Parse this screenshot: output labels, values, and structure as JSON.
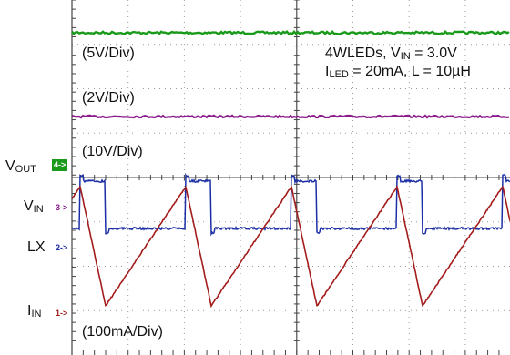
{
  "chart_data": {
    "type": "line",
    "title": "",
    "grid": true,
    "annotation": {
      "line1": "4WLEDs, V",
      "line1_sub": "IN",
      "line1_rest": " = 3.0V",
      "line2": "I",
      "line2_sub": "LED",
      "line2_rest": " = 20mA, L = 10µH"
    },
    "scale_labels": [
      "(5V/Div)",
      "(2V/Div)",
      "(10V/Div)",
      "(100mA/Div)"
    ],
    "channels": [
      {
        "main": "V",
        "sub": "OUT",
        "marker": "4->",
        "color": "#1a9a1a",
        "level_div": 6.0,
        "waveform": "dc"
      },
      {
        "main": "V",
        "sub": "IN",
        "marker": "3->",
        "color": "#8b1a8b",
        "level_div": 3.5,
        "waveform": "dc"
      },
      {
        "main": "LX",
        "sub": "",
        "marker": "2->",
        "color": "#1c2fa6",
        "level_div": 0.8,
        "high_div": 2.6,
        "waveform": "switching"
      },
      {
        "main": "I",
        "sub": "IN",
        "marker": "1->",
        "color": "#a31c1c",
        "low_div": -1.8,
        "high_div": 0.9,
        "waveform": "triangle"
      }
    ],
    "switching_periods_div": 2.4,
    "high_fraction": 0.38
  },
  "colors": {
    "grid": "#9a9a9a",
    "frame": "#444444",
    "background": "#ffffff"
  }
}
